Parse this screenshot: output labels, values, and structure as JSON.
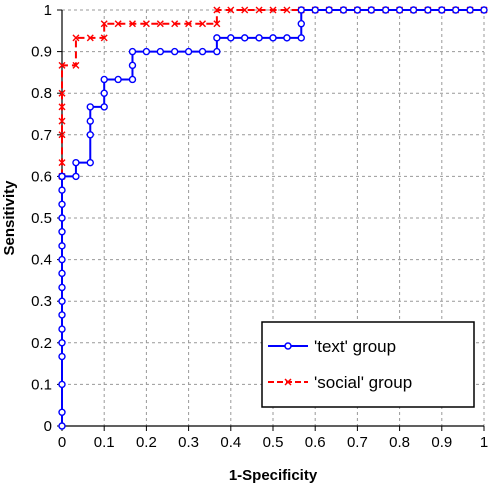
{
  "chart_data": {
    "type": "line",
    "title": "",
    "xlabel": "1-Specificity",
    "ylabel": "Sensitivity",
    "xlim": [
      0,
      1
    ],
    "ylim": [
      0,
      1
    ],
    "xticks": [
      "0",
      "0.1",
      "0.2",
      "0.3",
      "0.4",
      "0.5",
      "0.6",
      "0.7",
      "0.8",
      "0.9",
      "1"
    ],
    "yticks": [
      "0",
      "0.1",
      "0.2",
      "0.3",
      "0.4",
      "0.5",
      "0.6",
      "0.7",
      "0.8",
      "0.9",
      "1"
    ],
    "grid": true,
    "legend_position": "bottom-right",
    "series": [
      {
        "name": "'text' group",
        "color": "#0000ff",
        "marker": "circle",
        "line_style": "solid",
        "x": [
          0,
          0,
          0,
          0,
          0,
          0,
          0,
          0,
          0,
          0,
          0,
          0,
          0,
          0,
          0,
          0,
          0,
          0,
          0,
          0,
          0,
          0.033,
          0.033,
          0.067,
          0.067,
          0.067,
          0.067,
          0.1,
          0.1,
          0.1,
          0.133,
          0.167,
          0.167,
          0.167,
          0.2,
          0.233,
          0.267,
          0.3,
          0.333,
          0.367,
          0.367,
          0.4,
          0.433,
          0.467,
          0.5,
          0.533,
          0.567,
          0.567,
          0.567,
          0.6,
          0.633,
          0.667,
          0.7,
          0.733,
          0.767,
          0.8,
          0.833,
          0.867,
          0.9,
          0.933,
          0.967,
          1.0
        ],
        "y": [
          0,
          0.033,
          0.1,
          0.167,
          0.2,
          0.233,
          0.267,
          0.3,
          0.333,
          0.367,
          0.4,
          0.433,
          0.467,
          0.5,
          0.533,
          0.567,
          0.6,
          0.6,
          0.6,
          0.6,
          0.6,
          0.6,
          0.633,
          0.633,
          0.7,
          0.733,
          0.767,
          0.767,
          0.8,
          0.833,
          0.833,
          0.833,
          0.867,
          0.9,
          0.9,
          0.9,
          0.9,
          0.9,
          0.9,
          0.9,
          0.933,
          0.933,
          0.933,
          0.933,
          0.933,
          0.933,
          0.933,
          0.967,
          1.0,
          1.0,
          1.0,
          1.0,
          1.0,
          1.0,
          1.0,
          1.0,
          1.0,
          1.0,
          1.0,
          1.0,
          1.0,
          1.0
        ]
      },
      {
        "name": "'social' group",
        "color": "#ff0000",
        "marker": "x",
        "line_style": "dashed",
        "x": [
          0,
          0,
          0,
          0,
          0,
          0,
          0,
          0.033,
          0.033,
          0.067,
          0.1,
          0.1,
          0.133,
          0.167,
          0.2,
          0.233,
          0.267,
          0.3,
          0.333,
          0.367,
          0.367,
          0.4,
          0.433,
          0.467,
          0.5,
          0.533,
          0.567,
          0.6,
          0.633,
          0.667,
          0.7,
          0.733,
          0.767,
          0.8,
          0.833,
          0.867,
          0.9,
          0.933,
          0.967,
          1.0
        ],
        "y": [
          0.6,
          0.633,
          0.7,
          0.733,
          0.767,
          0.8,
          0.867,
          0.867,
          0.933,
          0.933,
          0.933,
          0.967,
          0.967,
          0.967,
          0.967,
          0.967,
          0.967,
          0.967,
          0.967,
          0.967,
          1.0,
          1.0,
          1.0,
          1.0,
          1.0,
          1.0,
          1.0,
          1.0,
          1.0,
          1.0,
          1.0,
          1.0,
          1.0,
          1.0,
          1.0,
          1.0,
          1.0,
          1.0,
          1.0,
          1.0
        ]
      }
    ]
  }
}
